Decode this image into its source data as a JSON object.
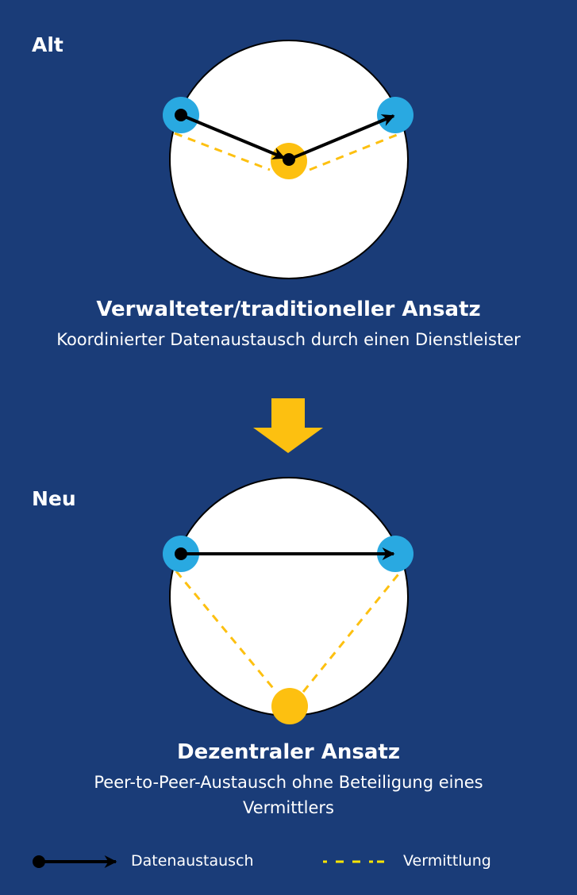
{
  "old": {
    "label": "Alt",
    "title": "Verwalteter/traditioneller Ansatz",
    "subtitle": "Koordinierter Datenaustausch durch einen Dienstleister"
  },
  "new": {
    "label": "Neu",
    "title": "Dezentraler Ansatz",
    "subtitle": "Peer-to-Peer-Austausch ohne Beteiligung eines Vermittlers"
  },
  "legend": {
    "data_exchange": "Datenaustausch",
    "mediation": "Vermittlung"
  },
  "colors": {
    "background": "#1a3c78",
    "peer": "#29a9e1",
    "intermediary": "#fdc010",
    "arrow": "#000000",
    "legend_dash": "#ffe600"
  }
}
